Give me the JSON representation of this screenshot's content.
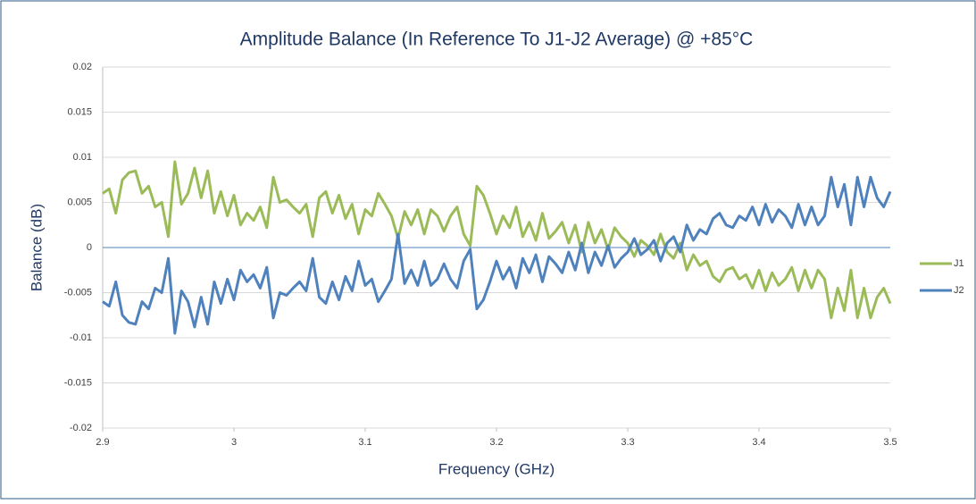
{
  "chart_data": {
    "type": "line",
    "title": "Amplitude Balance (In Reference To J1-J2 Average) @ +85°C",
    "x_label": "Frequency (GHz)",
    "y_label": "Balance (dB)",
    "x": [
      2.9,
      2.905,
      2.91,
      2.915,
      2.92,
      2.925,
      2.93,
      2.935,
      2.94,
      2.945,
      2.95,
      2.955,
      2.96,
      2.965,
      2.97,
      2.975,
      2.98,
      2.985,
      2.99,
      2.995,
      3.0,
      3.005,
      3.01,
      3.015,
      3.02,
      3.025,
      3.03,
      3.035,
      3.04,
      3.045,
      3.05,
      3.055,
      3.06,
      3.065,
      3.07,
      3.075,
      3.08,
      3.085,
      3.09,
      3.095,
      3.1,
      3.105,
      3.11,
      3.115,
      3.12,
      3.125,
      3.13,
      3.135,
      3.14,
      3.145,
      3.15,
      3.155,
      3.16,
      3.165,
      3.17,
      3.175,
      3.18,
      3.185,
      3.19,
      3.195,
      3.2,
      3.205,
      3.21,
      3.215,
      3.22,
      3.225,
      3.23,
      3.235,
      3.24,
      3.245,
      3.25,
      3.255,
      3.26,
      3.265,
      3.27,
      3.275,
      3.28,
      3.285,
      3.29,
      3.295,
      3.3,
      3.305,
      3.31,
      3.315,
      3.32,
      3.325,
      3.33,
      3.335,
      3.34,
      3.345,
      3.35,
      3.355,
      3.36,
      3.365,
      3.37,
      3.375,
      3.38,
      3.385,
      3.39,
      3.395,
      3.4,
      3.405,
      3.41,
      3.415,
      3.42,
      3.425,
      3.43,
      3.435,
      3.44,
      3.445,
      3.45,
      3.455,
      3.46,
      3.465,
      3.47,
      3.475,
      3.48,
      3.485,
      3.49,
      3.495,
      3.5
    ],
    "series": [
      {
        "name": "J1",
        "color": "#9bbb59",
        "values": [
          0.006,
          0.0065,
          0.0038,
          0.0075,
          0.0083,
          0.0085,
          0.006,
          0.0068,
          0.0045,
          0.005,
          0.0012,
          0.0095,
          0.0048,
          0.006,
          0.0088,
          0.0055,
          0.0085,
          0.0038,
          0.0062,
          0.0035,
          0.0058,
          0.0025,
          0.0038,
          0.003,
          0.0045,
          0.0022,
          0.0078,
          0.005,
          0.0053,
          0.0045,
          0.0038,
          0.0048,
          0.0012,
          0.0055,
          0.0062,
          0.0038,
          0.0058,
          0.0032,
          0.0048,
          0.0015,
          0.0042,
          0.0035,
          0.006,
          0.0048,
          0.0035,
          0.001,
          0.004,
          0.0025,
          0.0042,
          0.0015,
          0.0042,
          0.0035,
          0.0018,
          0.0035,
          0.0045,
          0.0015,
          0.0002,
          0.0068,
          0.0058,
          0.0038,
          0.0015,
          0.0035,
          0.0022,
          0.0045,
          0.0012,
          0.0028,
          0.0008,
          0.0038,
          0.001,
          0.0018,
          0.0028,
          0.0005,
          0.0025,
          -0.0005,
          0.0028,
          0.0005,
          0.002,
          -0.0002,
          0.0022,
          0.0012,
          0.0005,
          -0.001,
          0.0008,
          0.0002,
          -0.0008,
          0.0015,
          -0.0005,
          -0.0012,
          0.0005,
          -0.0025,
          -0.0008,
          -0.002,
          -0.0015,
          -0.0032,
          -0.0038,
          -0.0025,
          -0.0022,
          -0.0035,
          -0.003,
          -0.0045,
          -0.0025,
          -0.0048,
          -0.0028,
          -0.0042,
          -0.0035,
          -0.0022,
          -0.0048,
          -0.0025,
          -0.0045,
          -0.0025,
          -0.0035,
          -0.0078,
          -0.0045,
          -0.007,
          -0.0025,
          -0.0078,
          -0.0045,
          -0.0078,
          -0.0055,
          -0.0045,
          -0.0062
        ]
      },
      {
        "name": "J2",
        "color": "#4f81bd",
        "values": [
          -0.006,
          -0.0065,
          -0.0038,
          -0.0075,
          -0.0083,
          -0.0085,
          -0.006,
          -0.0068,
          -0.0045,
          -0.005,
          -0.0012,
          -0.0095,
          -0.0048,
          -0.006,
          -0.0088,
          -0.0055,
          -0.0085,
          -0.0038,
          -0.0062,
          -0.0035,
          -0.0058,
          -0.0025,
          -0.0038,
          -0.003,
          -0.0045,
          -0.0022,
          -0.0078,
          -0.005,
          -0.0053,
          -0.0045,
          -0.0038,
          -0.0048,
          -0.0012,
          -0.0055,
          -0.0062,
          -0.0038,
          -0.0058,
          -0.0032,
          -0.0048,
          -0.0015,
          -0.0042,
          -0.0035,
          -0.006,
          -0.0048,
          -0.0035,
          0.0015,
          -0.004,
          -0.0025,
          -0.0042,
          -0.0015,
          -0.0042,
          -0.0035,
          -0.0018,
          -0.0035,
          -0.0045,
          -0.0015,
          -0.0002,
          -0.0068,
          -0.0058,
          -0.0038,
          -0.0015,
          -0.0035,
          -0.0022,
          -0.0045,
          -0.0012,
          -0.0028,
          -0.0008,
          -0.0038,
          -0.001,
          -0.0018,
          -0.0028,
          -0.0005,
          -0.0025,
          0.0005,
          -0.0028,
          -0.0005,
          -0.002,
          0.0002,
          -0.0022,
          -0.0012,
          -0.0005,
          0.001,
          -0.0008,
          -0.0002,
          0.0008,
          -0.0015,
          0.0005,
          0.0012,
          -0.0005,
          0.0025,
          0.0008,
          0.002,
          0.0015,
          0.0032,
          0.0038,
          0.0025,
          0.0022,
          0.0035,
          0.003,
          0.0045,
          0.0025,
          0.0048,
          0.0028,
          0.0042,
          0.0035,
          0.0022,
          0.0048,
          0.0025,
          0.0045,
          0.0025,
          0.0035,
          0.0078,
          0.0045,
          0.007,
          0.0025,
          0.0078,
          0.0045,
          0.0078,
          0.0055,
          0.0045,
          0.0062
        ]
      }
    ],
    "xlim": [
      2.9,
      3.5
    ],
    "xticks": [
      2.9,
      3,
      3.1,
      3.2,
      3.3,
      3.4,
      3.5
    ],
    "ylim": [
      -0.02,
      0.02
    ],
    "yticks": [
      -0.02,
      -0.015,
      -0.01,
      -0.005,
      0,
      0.005,
      0.01,
      0.015,
      0.02
    ],
    "grid": true,
    "legend": "right"
  }
}
